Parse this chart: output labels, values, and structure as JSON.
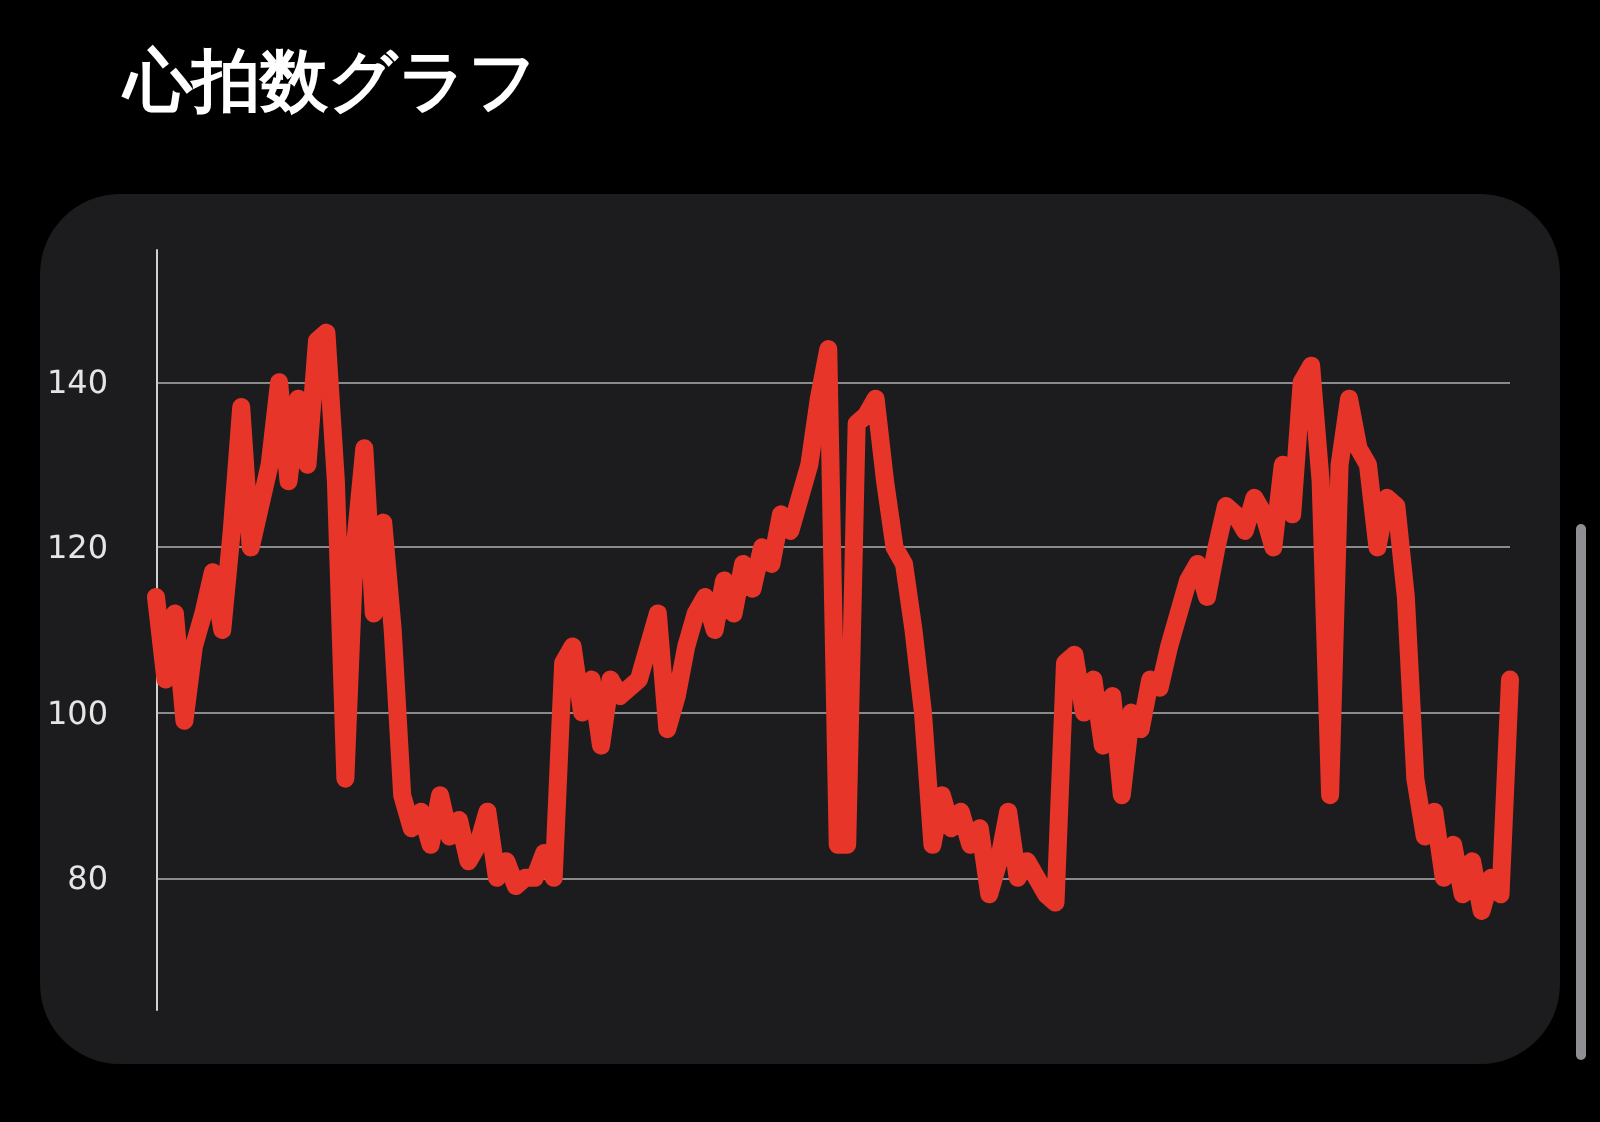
{
  "chart_data": {
    "type": "line",
    "title": "心拍数グラフ",
    "categories": [
      null,
      null,
      null,
      null,
      null,
      null,
      null,
      null,
      null,
      null,
      null,
      null,
      null,
      null,
      null,
      null,
      null,
      null,
      null,
      null,
      null,
      null,
      null,
      null,
      null,
      null,
      null,
      null,
      null,
      null,
      null,
      null,
      null,
      null,
      null,
      null,
      null,
      null,
      null,
      null,
      null,
      null,
      null,
      null,
      null,
      null,
      null,
      null,
      null,
      null,
      null,
      null,
      null,
      null,
      null,
      null,
      null,
      null,
      null,
      null,
      null,
      null,
      null,
      null,
      null,
      null,
      null,
      null,
      null,
      null,
      null,
      null,
      null,
      null,
      null,
      null,
      null,
      null,
      null,
      null,
      null,
      null,
      null,
      null,
      null,
      null,
      null,
      null,
      null,
      null,
      null,
      null,
      null,
      null,
      null,
      null,
      null,
      null,
      null,
      null,
      null,
      null,
      null,
      null,
      null,
      null,
      null,
      null,
      null,
      null,
      null,
      null,
      null,
      null,
      null,
      null,
      null,
      null,
      null,
      null,
      null,
      null,
      null,
      null,
      null,
      null,
      null,
      null,
      null,
      null,
      null,
      null,
      null,
      null,
      null,
      null,
      null,
      null,
      null,
      null,
      null,
      null,
      null,
      null
    ],
    "series": [
      {
        "color": "#e8352a",
        "values": [
          114,
          104,
          112,
          99,
          108,
          112,
          117,
          110,
          122,
          137,
          120,
          125,
          130,
          140,
          128,
          138,
          130,
          145,
          146,
          128,
          92,
          120,
          132,
          112,
          123,
          110,
          90,
          86,
          88,
          84,
          90,
          85,
          87,
          82,
          84,
          88,
          80,
          82,
          79,
          80,
          80,
          83,
          80,
          106,
          108,
          100,
          104,
          96,
          104,
          102,
          103,
          104,
          108,
          112,
          98,
          102,
          108,
          112,
          114,
          110,
          116,
          112,
          118,
          115,
          120,
          118,
          124,
          122,
          126,
          130,
          138,
          144,
          84,
          84,
          135,
          136,
          138,
          128,
          120,
          118,
          110,
          100,
          84,
          90,
          86,
          88,
          84,
          86,
          78,
          82,
          88,
          80,
          82,
          80,
          78,
          77,
          106,
          107,
          100,
          104,
          96,
          102,
          90,
          100,
          98,
          104,
          103,
          108,
          112,
          116,
          118,
          114,
          120,
          125,
          124,
          122,
          126,
          124,
          120,
          130,
          124,
          140,
          142,
          128,
          90,
          130,
          138,
          132,
          130,
          120,
          126,
          125,
          114,
          92,
          85,
          88,
          80,
          84,
          78,
          82,
          76,
          80,
          78,
          104
        ]
      }
    ],
    "ylim": [
      64,
      156
    ],
    "yticks": [
      80,
      100,
      120,
      140
    ],
    "grid": "y",
    "tick_labels": "y",
    "line_style": "solid"
  }
}
